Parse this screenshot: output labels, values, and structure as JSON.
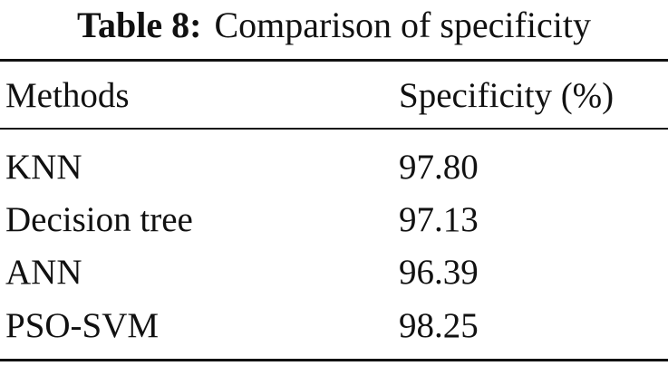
{
  "caption": {
    "label": "Table 8:",
    "text": "Comparison of specificity"
  },
  "table": {
    "header": [
      "Methods",
      "Specificity (%)"
    ],
    "rows": [
      [
        "KNN",
        "97.80"
      ],
      [
        "Decision tree",
        "97.13"
      ],
      [
        "ANN",
        "96.39"
      ],
      [
        "PSO-SVM",
        "98.25"
      ]
    ]
  }
}
